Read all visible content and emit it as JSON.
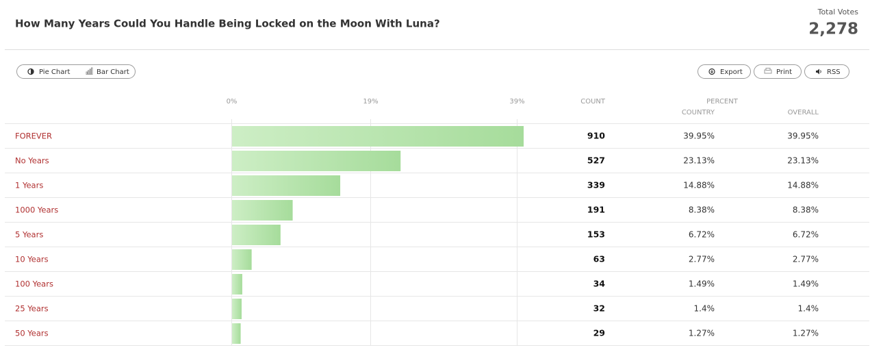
{
  "header": {
    "title": "How Many Years Could You Handle Being Locked on the Moon With Luna?",
    "total_label": "Total Votes",
    "total": "2,278"
  },
  "toolbar": {
    "pie": "Pie Chart",
    "bar": "Bar Chart",
    "export": "Export",
    "print": "Print",
    "rss": "RSS"
  },
  "chart_data": {
    "type": "bar",
    "orientation": "horizontal",
    "categories": [
      "FOREVER",
      "No Years",
      "1 Years",
      "1000 Years",
      "5 Years",
      "10 Years",
      "100 Years",
      "25 Years",
      "50 Years"
    ],
    "values": [
      39.95,
      23.13,
      14.88,
      8.38,
      6.72,
      2.77,
      1.49,
      1.4,
      1.27
    ],
    "color": "#a6dc9b",
    "xlim": [
      0,
      39.95
    ],
    "xticks": [
      {
        "value": 0,
        "label": "0%"
      },
      {
        "value": 19,
        "label": "19%"
      },
      {
        "value": 39,
        "label": "39%"
      }
    ],
    "grid": true
  },
  "table": {
    "headers": {
      "count": "COUNT",
      "percent": "PERCENT",
      "country": "COUNTRY",
      "overall": "OVERALL"
    },
    "rows": [
      {
        "count": 910,
        "country": "39.95%",
        "overall": "39.95%"
      },
      {
        "count": 527,
        "country": "23.13%",
        "overall": "23.13%"
      },
      {
        "count": 339,
        "country": "14.88%",
        "overall": "14.88%"
      },
      {
        "count": 191,
        "country": "8.38%",
        "overall": "8.38%"
      },
      {
        "count": 153,
        "country": "6.72%",
        "overall": "6.72%"
      },
      {
        "count": 63,
        "country": "2.77%",
        "overall": "2.77%"
      },
      {
        "count": 34,
        "country": "1.49%",
        "overall": "1.49%"
      },
      {
        "count": 32,
        "country": "1.4%",
        "overall": "1.4%"
      },
      {
        "count": 29,
        "country": "1.27%",
        "overall": "1.27%"
      }
    ]
  }
}
